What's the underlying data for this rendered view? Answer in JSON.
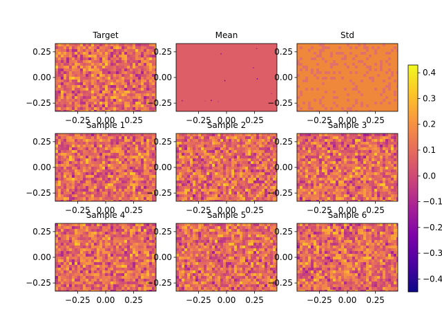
{
  "chart_data": {
    "type": "heatmap",
    "colormap": "plasma",
    "colors": {
      "background": "#ffffff",
      "axis": "#000000",
      "mean_fill": "#dd5e66",
      "std_fill": "#f0883c"
    },
    "panels": [
      {
        "title": "Target",
        "pattern": "noise"
      },
      {
        "title": "Mean",
        "pattern": "flat-mean"
      },
      {
        "title": "Std",
        "pattern": "flat-std"
      },
      {
        "title": "Sample 1",
        "pattern": "noise"
      },
      {
        "title": "Sample 2",
        "pattern": "noise"
      },
      {
        "title": "Sample 3",
        "pattern": "noise"
      },
      {
        "title": "Sample 4",
        "pattern": "noise"
      },
      {
        "title": "Sample 5",
        "pattern": "noise"
      },
      {
        "title": "Sample 6",
        "pattern": "noise"
      }
    ],
    "xlim": [
      -0.45,
      0.45
    ],
    "ylim": [
      -0.33,
      0.33
    ],
    "x_ticks": [
      "−0.25",
      "0.00",
      "0.25"
    ],
    "x_tick_values": [
      -0.25,
      0.0,
      0.25
    ],
    "y_ticks": [
      "−0.25",
      "0.00",
      "0.25"
    ],
    "y_tick_values": [
      -0.25,
      0.0,
      0.25
    ],
    "colorbar": {
      "min": -0.45,
      "max": 0.43,
      "tick_values": [
        0.4,
        0.3,
        0.2,
        0.1,
        0.0,
        -0.1,
        -0.2,
        -0.3,
        -0.4
      ],
      "tick_labels": [
        "0.4",
        "0.3",
        "0.2",
        "0.1",
        "0.0",
        "−0.1",
        "−0.2",
        "−0.3",
        "−0.4"
      ]
    }
  }
}
